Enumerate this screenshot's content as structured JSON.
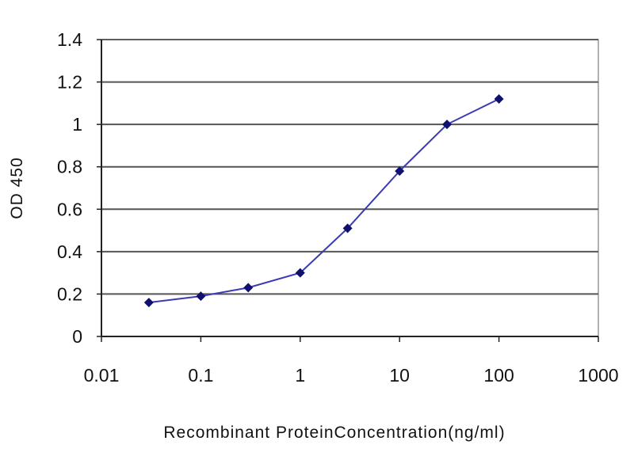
{
  "chart_data": {
    "type": "line",
    "xlabel": "Recombinant ProteinConcentration(ng/ml)",
    "ylabel": "OD 450",
    "xscale": "log",
    "xlim": [
      0.01,
      1000
    ],
    "ylim": [
      0,
      1.4
    ],
    "x_ticks": [
      "0.01",
      "0.1",
      "1",
      "10",
      "100",
      "1000"
    ],
    "y_ticks": [
      "0",
      "0.2",
      "0.4",
      "0.6",
      "0.8",
      "1",
      "1.2",
      "1.4"
    ],
    "grid": "horizontal",
    "series": [
      {
        "x": [
          0.03,
          0.1,
          0.3,
          1,
          3,
          10,
          30,
          100
        ],
        "y": [
          0.16,
          0.19,
          0.23,
          0.3,
          0.51,
          0.78,
          1.0,
          1.12
        ]
      }
    ],
    "colors": {
      "line": "#3b3bb5",
      "marker": "#10106e",
      "grid": "#555555",
      "plot_border": "#666666"
    }
  }
}
